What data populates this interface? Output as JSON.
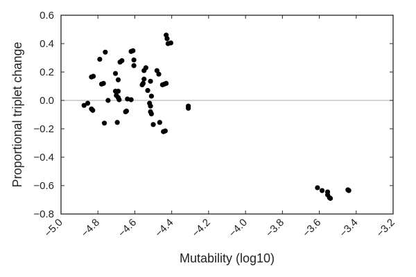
{
  "chart_data": {
    "type": "scatter",
    "title": "",
    "xlabel": "Mutability (log10)",
    "ylabel": "Proportional triplet change",
    "xlim": [
      -5.0,
      -3.2
    ],
    "ylim": [
      -0.8,
      0.6
    ],
    "x_ticks": [
      "-5.0",
      "-4.8",
      "-4.6",
      "-4.4",
      "-4.2",
      "-4.0",
      "-3.8",
      "-3.6",
      "-3.4",
      "-3.2"
    ],
    "y_ticks": [
      "0.6",
      "0.4",
      "0.2",
      "0.0",
      "-0.2",
      "-0.4",
      "-0.6",
      "-0.8"
    ],
    "reference_line": 0.0,
    "grid": false,
    "marker_color": "#000000",
    "reference_line_color": "#bbbbbb",
    "series": [
      {
        "points": [
          [
            -4.875,
            -0.035
          ],
          [
            -4.855,
            -0.02
          ],
          [
            -4.835,
            -0.06
          ],
          [
            -4.828,
            -0.07
          ],
          [
            -4.835,
            0.165
          ],
          [
            -4.825,
            0.17
          ],
          [
            -4.79,
            0.29
          ],
          [
            -4.78,
            0.115
          ],
          [
            -4.77,
            0.12
          ],
          [
            -4.76,
            0.34
          ],
          [
            -4.745,
            0.0
          ],
          [
            -4.765,
            -0.16
          ],
          [
            -4.705,
            0.19
          ],
          [
            -4.7,
            0.035
          ],
          [
            -4.705,
            0.065
          ],
          [
            -4.69,
            0.065
          ],
          [
            -4.69,
            0.02
          ],
          [
            -4.685,
            0.005
          ],
          [
            -4.69,
            0.145
          ],
          [
            -4.68,
            0.27
          ],
          [
            -4.67,
            0.28
          ],
          [
            -4.695,
            -0.155
          ],
          [
            -4.65,
            -0.08
          ],
          [
            -4.645,
            -0.075
          ],
          [
            -4.64,
            0.01
          ],
          [
            -4.62,
            0.005
          ],
          [
            -4.62,
            0.345
          ],
          [
            -4.61,
            0.35
          ],
          [
            -4.605,
            0.285
          ],
          [
            -4.605,
            0.245
          ],
          [
            -4.56,
            0.11
          ],
          [
            -4.555,
            0.12
          ],
          [
            -4.55,
            0.21
          ],
          [
            -4.55,
            0.15
          ],
          [
            -4.54,
            0.23
          ],
          [
            -4.53,
            0.07
          ],
          [
            -4.515,
            0.135
          ],
          [
            -4.51,
            0.03
          ],
          [
            -4.52,
            -0.02
          ],
          [
            -4.515,
            -0.04
          ],
          [
            -4.515,
            -0.08
          ],
          [
            -4.51,
            -0.095
          ],
          [
            -4.5,
            -0.17
          ],
          [
            -4.48,
            0.21
          ],
          [
            -4.47,
            0.185
          ],
          [
            -4.465,
            -0.155
          ],
          [
            -4.45,
            0.11
          ],
          [
            -4.44,
            0.115
          ],
          [
            -4.43,
            0.12
          ],
          [
            -4.445,
            -0.22
          ],
          [
            -4.435,
            -0.215
          ],
          [
            -4.43,
            0.46
          ],
          [
            -4.425,
            0.435
          ],
          [
            -4.42,
            0.4
          ],
          [
            -4.405,
            0.405
          ],
          [
            -4.31,
            -0.04
          ],
          [
            -4.31,
            -0.055
          ],
          [
            -3.61,
            -0.615
          ],
          [
            -3.585,
            -0.635
          ],
          [
            -3.555,
            -0.645
          ],
          [
            -3.555,
            -0.665
          ],
          [
            -3.545,
            -0.685
          ],
          [
            -3.54,
            -0.69
          ],
          [
            -3.445,
            -0.63
          ],
          [
            -3.44,
            -0.635
          ]
        ]
      }
    ]
  }
}
